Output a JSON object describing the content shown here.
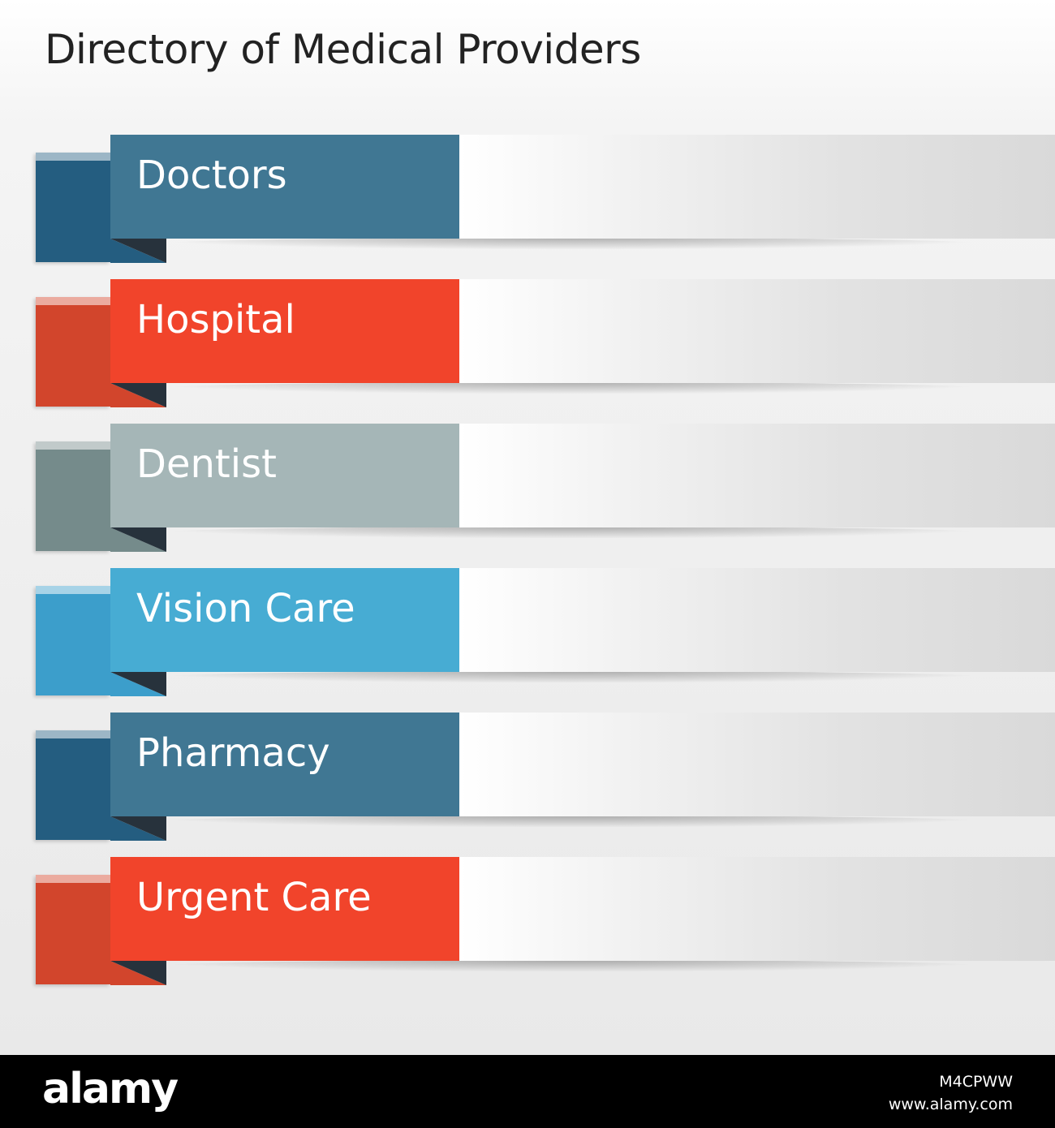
{
  "title": "Directory of Medical Providers",
  "items": [
    {
      "label": "Doctors",
      "front_color": "#407793",
      "back_color": "#245d80"
    },
    {
      "label": "Hospital",
      "front_color": "#f1442b",
      "back_color": "#d2452c"
    },
    {
      "label": "Dentist",
      "front_color": "#a5b6b7",
      "back_color": "#758b8b"
    },
    {
      "label": "Vision Care",
      "front_color": "#47acd3",
      "back_color": "#3c9ecb"
    },
    {
      "label": "Pharmacy",
      "front_color": "#407793",
      "back_color": "#245d80"
    },
    {
      "label": "Urgent Care",
      "front_color": "#f1442b",
      "back_color": "#d2452c"
    }
  ],
  "track_colors": {
    "start": "#ffffff",
    "end": "#d9d9d9"
  },
  "fold_color": "#27323c",
  "footer": {
    "brand": "alamy",
    "image_id": "M4CPWW",
    "source_url": "www.alamy.com"
  }
}
